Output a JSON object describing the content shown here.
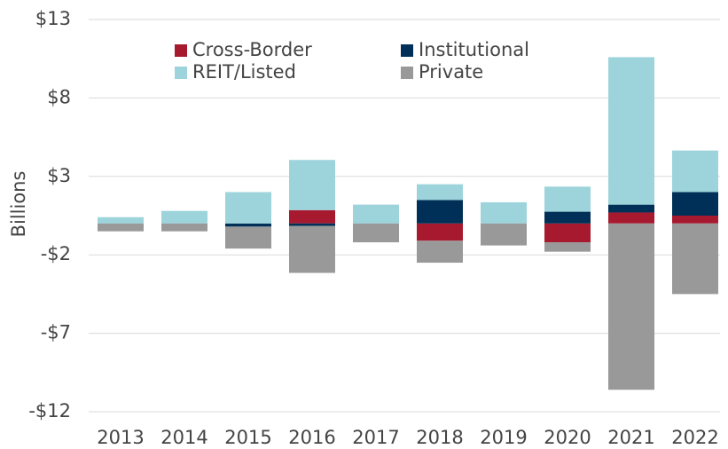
{
  "chart_data": {
    "type": "stacked_bar",
    "y_label": "Billions",
    "categories": [
      "2013",
      "2014",
      "2015",
      "2016",
      "2017",
      "2018",
      "2019",
      "2020",
      "2021",
      "2022"
    ],
    "series": [
      {
        "name": "Cross-Border",
        "color": "#a6192e",
        "values": [
          0,
          0,
          0,
          0.85,
          0,
          -1.1,
          0,
          -1.2,
          0.7,
          0.5
        ]
      },
      {
        "name": "Institutional",
        "color": "#003057",
        "values": [
          0,
          0,
          -0.2,
          -0.15,
          0,
          1.5,
          0,
          0.75,
          0.5,
          1.5
        ]
      },
      {
        "name": "REIT/Listed",
        "color": "#9dd4dc",
        "values": [
          0.4,
          0.8,
          2.0,
          3.2,
          1.2,
          1.0,
          1.35,
          1.6,
          9.4,
          2.65
        ]
      },
      {
        "name": "Private",
        "color": "#999999",
        "values": [
          -0.5,
          -0.5,
          -1.4,
          -3.0,
          -1.2,
          -1.4,
          -1.4,
          -0.6,
          -10.6,
          -4.5
        ]
      }
    ],
    "ylim": [
      -12,
      13
    ],
    "yticks": [
      {
        "value": -12,
        "label": "-$12"
      },
      {
        "value": -7,
        "label": "-$7"
      },
      {
        "value": -2,
        "label": "-$2"
      },
      {
        "value": 3,
        "label": "$3"
      },
      {
        "value": 8,
        "label": "$8"
      },
      {
        "value": 13,
        "label": "$13"
      }
    ],
    "grid": true,
    "legend": "top"
  }
}
